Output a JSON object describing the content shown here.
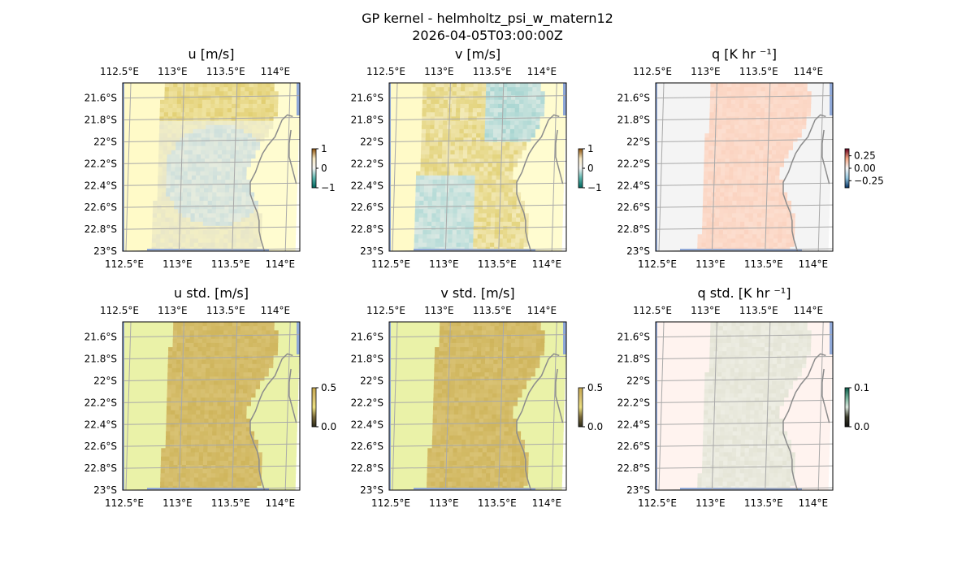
{
  "figure": {
    "title_line1": "GP kernel - helmholtz_psi_w_matern12",
    "title_line2": "2026-04-05T03:00:00Z"
  },
  "colors": {
    "land": "#ffffff",
    "water_edge": "#8fa8d8",
    "grid": "#a9a9a9",
    "coast": "#8c8c8c"
  },
  "axes_labels": {
    "lon_ticks": [
      "112.5°E",
      "113°E",
      "113.5°E",
      "114°E"
    ],
    "lat_ticks": [
      "21.6°S",
      "21.8°S",
      "22°S",
      "22.2°S",
      "22.4°S",
      "22.6°S",
      "22.8°S",
      "23°S"
    ]
  },
  "chart_data": [
    {
      "type": "heatmap",
      "name": "u",
      "title": "u [m/s]",
      "colormap": "BrBG-like diverging",
      "colorbar": {
        "ticks": [
          "1",
          "0",
          "−1"
        ],
        "range": [
          -1,
          1
        ]
      },
      "bands": [
        {
          "lon_range": [
            112.5,
            113.0
          ],
          "value_desc": "low",
          "color": "#fffac8"
        },
        {
          "lon_range": [
            113.0,
            113.85
          ],
          "value_desc": "mixed",
          "color": "#dde4d8"
        }
      ],
      "xlim": [
        112.5,
        114.15
      ],
      "ylim": [
        -23.0,
        -21.45
      ]
    },
    {
      "type": "heatmap",
      "name": "v",
      "title": "v [m/s]",
      "colormap": "BrBG-like diverging",
      "colorbar": {
        "ticks": [
          "1",
          "0",
          "−1"
        ],
        "range": [
          -1,
          1
        ]
      },
      "xlim": [
        112.5,
        114.15
      ],
      "ylim": [
        -23.0,
        -21.45
      ]
    },
    {
      "type": "heatmap",
      "name": "q",
      "title": "q [K hr ⁻¹]",
      "colormap": "RdBu-like diverging",
      "colorbar": {
        "ticks": [
          "0.25",
          "0.00",
          "−0.25"
        ],
        "range": [
          -0.35,
          0.35
        ]
      },
      "xlim": [
        112.5,
        114.15
      ],
      "ylim": [
        -23.0,
        -21.45
      ]
    },
    {
      "type": "heatmap",
      "name": "u std",
      "title": "u std. [m/s]",
      "colorbar": {
        "ticks": [
          "0.5",
          "0.0"
        ],
        "range": [
          0,
          0.5
        ]
      },
      "xlim": [
        112.5,
        114.15
      ],
      "ylim": [
        -23.0,
        -21.45
      ]
    },
    {
      "type": "heatmap",
      "name": "v std",
      "title": "v std. [m/s]",
      "colorbar": {
        "ticks": [
          "0.5",
          "0.0"
        ],
        "range": [
          0,
          0.5
        ]
      },
      "xlim": [
        112.5,
        114.15
      ],
      "ylim": [
        -23.0,
        -21.45
      ]
    },
    {
      "type": "heatmap",
      "name": "q std",
      "title": "q std. [K hr ⁻¹]",
      "colorbar": {
        "ticks": [
          "0.1",
          "0.0"
        ],
        "range": [
          0,
          0.1
        ]
      },
      "xlim": [
        112.5,
        114.15
      ],
      "ylim": [
        -23.0,
        -21.45
      ]
    }
  ]
}
